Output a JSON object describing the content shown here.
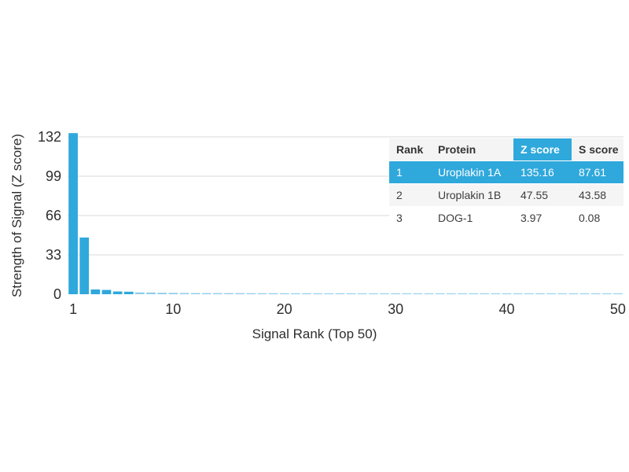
{
  "chart_data": {
    "type": "bar",
    "title": "",
    "xlabel": "Signal Rank (Top 50)",
    "ylabel": "Strength of Signal (Z score)",
    "categories": [
      1,
      2,
      3,
      4,
      5,
      6,
      7,
      8,
      9,
      10,
      11,
      12,
      13,
      14,
      15,
      16,
      17,
      18,
      19,
      20,
      21,
      22,
      23,
      24,
      25,
      26,
      27,
      28,
      29,
      30,
      31,
      32,
      33,
      34,
      35,
      36,
      37,
      38,
      39,
      40,
      41,
      42,
      43,
      44,
      45,
      46,
      47,
      48,
      49,
      50
    ],
    "values": [
      135.16,
      47.55,
      3.97,
      3.6,
      2.3,
      2.1,
      1.5,
      1.4,
      1.2,
      1.1,
      1.0,
      0.95,
      0.9,
      0.9,
      0.85,
      0.85,
      0.8,
      0.8,
      0.8,
      0.75,
      0.75,
      0.75,
      0.7,
      0.7,
      0.7,
      0.7,
      0.65,
      0.65,
      0.65,
      0.65,
      0.6,
      0.6,
      0.6,
      0.6,
      0.6,
      0.6,
      0.55,
      0.55,
      0.55,
      0.55,
      0.55,
      0.55,
      0.5,
      0.5,
      0.5,
      0.5,
      0.5,
      0.5,
      0.5,
      0.5
    ],
    "yticks": [
      0,
      33,
      66,
      99,
      132
    ],
    "xticks": [
      1,
      10,
      20,
      30,
      40,
      50
    ],
    "ylim": [
      0,
      150
    ],
    "grid": "horizontal",
    "legend": "none",
    "colors": {
      "bar": "#2FA8DC",
      "bar_faint": "#8CCCEA",
      "gridline": "#D9D9D9",
      "tick_text": "#2E2E2E"
    }
  },
  "table": {
    "headers": [
      "Rank",
      "Protein",
      "Z score",
      "S score"
    ],
    "highlighted_header": "Z score",
    "rows": [
      {
        "rank": "1",
        "protein": "Uroplakin 1A",
        "z_score": "135.16",
        "s_score": "87.61",
        "highlighted": true
      },
      {
        "rank": "2",
        "protein": "Uroplakin 1B",
        "z_score": "47.55",
        "s_score": "43.58",
        "highlighted": false
      },
      {
        "rank": "3",
        "protein": "DOG-1",
        "z_score": "3.97",
        "s_score": "0.08",
        "highlighted": false
      }
    ],
    "colors": {
      "highlight": "#2FA8DC",
      "row_alt": "#F5F5F5",
      "header_bg": "#F4F4F4",
      "header_text": "#333333",
      "cell_text": "#3C3C3C"
    }
  }
}
